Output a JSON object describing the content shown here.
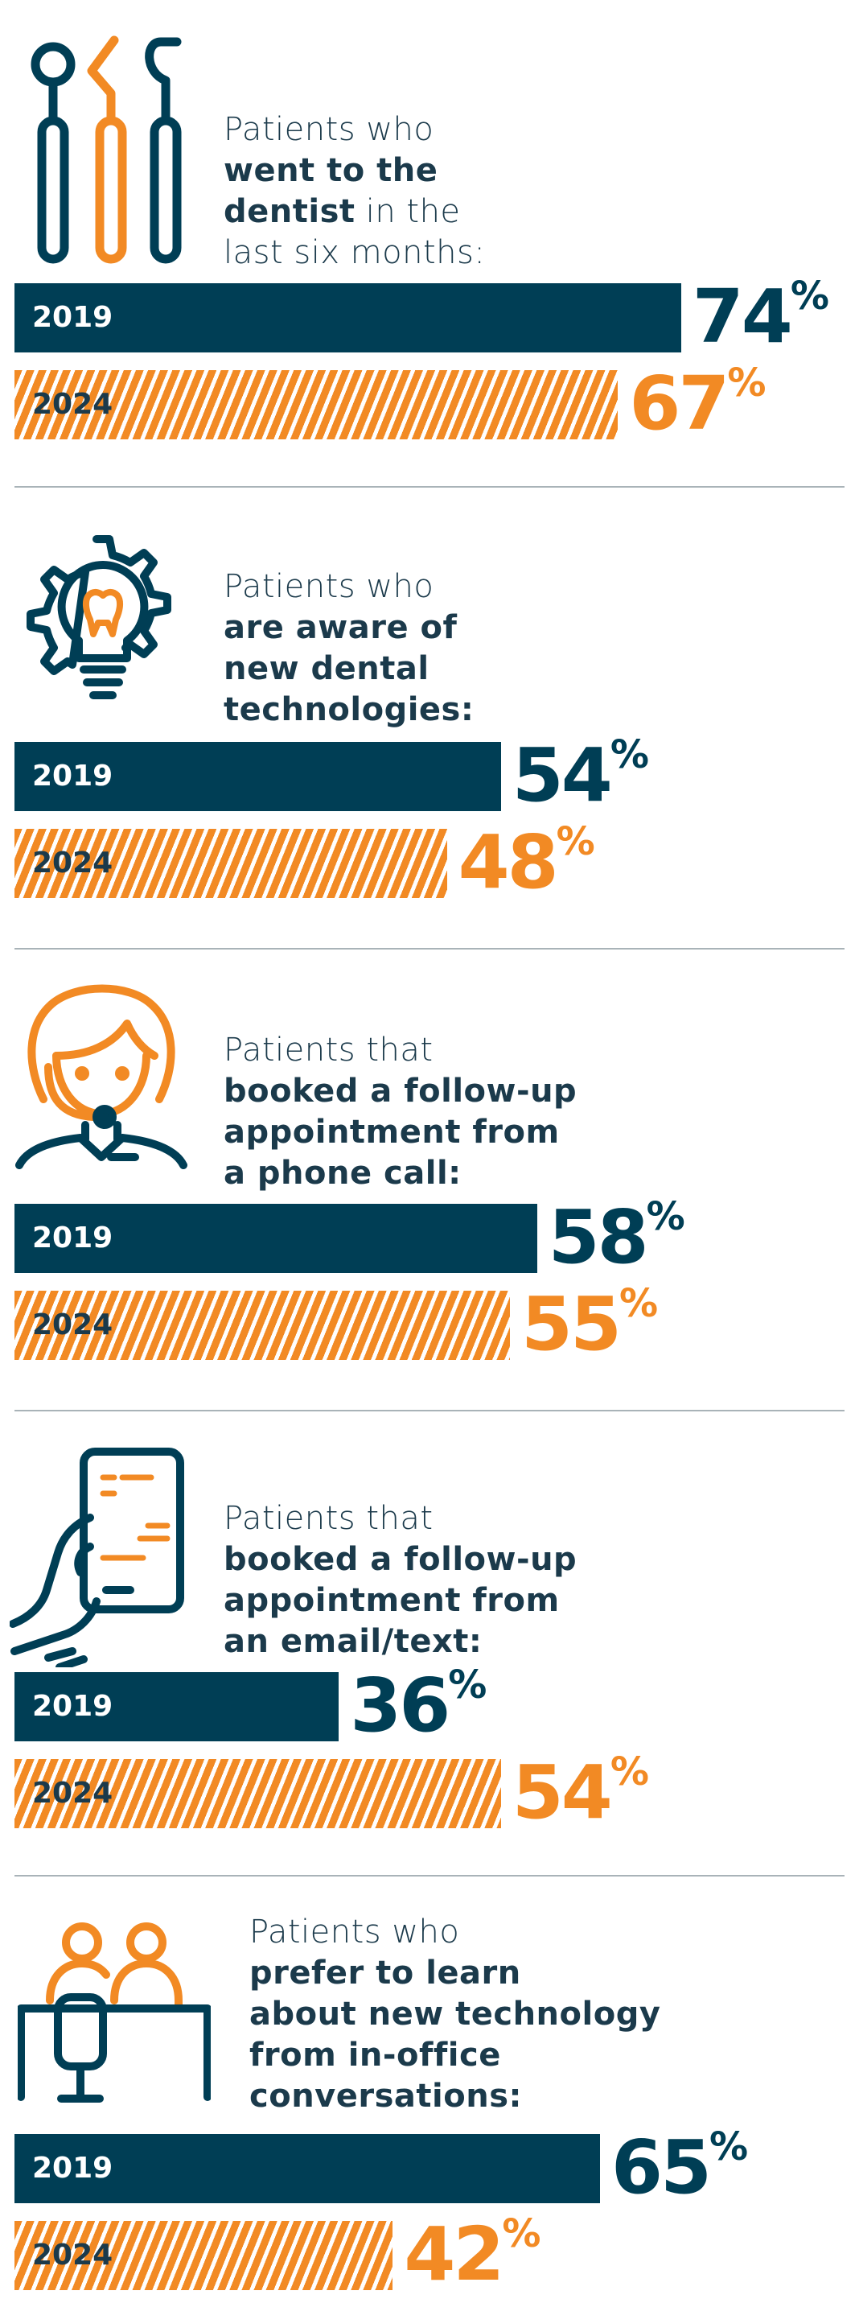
{
  "colors": {
    "navy": "#003e55",
    "orange": "#f28a24",
    "divider": "#a9b3b8",
    "text": "#1b3a4b"
  },
  "chart_data": [
    {
      "type": "bar",
      "title_parts": [
        "Patients who",
        "went to the",
        "dentist",
        "in the",
        "last six months:"
      ],
      "categories": [
        "2019",
        "2024"
      ],
      "values": [
        74,
        67
      ],
      "unit": "%",
      "xlim": [
        0,
        100
      ],
      "icon": "dental-tools-icon"
    },
    {
      "type": "bar",
      "title_parts": [
        "Patients who",
        "are aware of",
        "new dental",
        "technologies:"
      ],
      "categories": [
        "2019",
        "2024"
      ],
      "values": [
        54,
        48
      ],
      "unit": "%",
      "xlim": [
        0,
        100
      ],
      "icon": "lightbulb-tooth-gear-icon"
    },
    {
      "type": "bar",
      "title_parts": [
        "Patients that",
        "booked a follow-up",
        "appointment from",
        "a phone call:"
      ],
      "categories": [
        "2019",
        "2024"
      ],
      "values": [
        58,
        55
      ],
      "unit": "%",
      "xlim": [
        0,
        100
      ],
      "icon": "receptionist-headset-icon"
    },
    {
      "type": "bar",
      "title_parts": [
        "Patients that",
        "booked a follow-up",
        "appointment from",
        "an email/text:"
      ],
      "categories": [
        "2019",
        "2024"
      ],
      "values": [
        36,
        54
      ],
      "unit": "%",
      "xlim": [
        0,
        100
      ],
      "icon": "hand-phone-icon"
    },
    {
      "type": "bar",
      "title_parts": [
        "Patients who",
        "prefer to learn",
        "about new technology",
        "from in-office",
        "conversations:"
      ],
      "categories": [
        "2019",
        "2024"
      ],
      "values": [
        65,
        42
      ],
      "unit": "%",
      "xlim": [
        0,
        100
      ],
      "icon": "office-conversation-icon"
    }
  ]
}
